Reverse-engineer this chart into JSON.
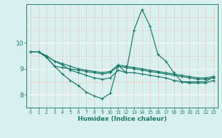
{
  "xlabel": "Humidex (Indice chaleur)",
  "x": [
    0,
    1,
    2,
    3,
    4,
    5,
    6,
    7,
    8,
    9,
    10,
    11,
    12,
    13,
    14,
    15,
    16,
    17,
    18,
    19,
    20,
    21,
    22,
    23
  ],
  "line1": [
    9.65,
    9.65,
    9.45,
    9.1,
    8.8,
    8.55,
    8.35,
    8.1,
    7.95,
    7.85,
    8.05,
    9.15,
    8.85,
    10.5,
    11.3,
    10.65,
    9.55,
    9.3,
    8.85,
    8.5,
    8.5,
    8.5,
    8.5,
    8.7
  ],
  "line2": [
    9.65,
    9.65,
    9.45,
    9.1,
    9.05,
    9.0,
    8.95,
    8.9,
    8.85,
    8.8,
    8.85,
    9.1,
    9.05,
    9.0,
    8.95,
    8.9,
    8.85,
    8.8,
    8.75,
    8.7,
    8.65,
    8.6,
    8.6,
    8.65
  ],
  "line3": [
    9.65,
    9.65,
    9.5,
    9.3,
    9.2,
    9.1,
    9.0,
    8.95,
    8.9,
    8.85,
    8.9,
    9.15,
    9.1,
    9.05,
    9.0,
    8.95,
    8.9,
    8.85,
    8.8,
    8.75,
    8.7,
    8.65,
    8.65,
    8.7
  ],
  "line4": [
    9.65,
    9.65,
    9.5,
    9.3,
    9.15,
    8.95,
    8.85,
    8.75,
    8.65,
    8.6,
    8.65,
    8.95,
    8.85,
    8.85,
    8.8,
    8.75,
    8.7,
    8.65,
    8.55,
    8.5,
    8.45,
    8.45,
    8.45,
    8.55
  ],
  "color": "#1a7a6a",
  "bg_color": "#d8f0ee",
  "grid_major_color": "#ffffff",
  "grid_minor_color": "#f5c0c0",
  "ylim": [
    7.5,
    11.5
  ],
  "xlim": [
    -0.5,
    23.5
  ],
  "yticks": [
    8,
    9,
    10
  ],
  "xticks": [
    0,
    1,
    2,
    3,
    4,
    5,
    6,
    7,
    8,
    9,
    10,
    11,
    12,
    13,
    14,
    15,
    16,
    17,
    18,
    19,
    20,
    21,
    22,
    23
  ]
}
